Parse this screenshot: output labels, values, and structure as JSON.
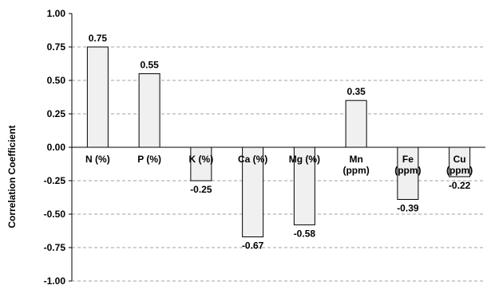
{
  "chart_data": {
    "type": "bar",
    "title": "",
    "xlabel": "",
    "ylabel": "Correlation Coefficient",
    "ylim": [
      -1.0,
      1.0
    ],
    "yticks": [
      "1.00",
      "0.75",
      "0.50",
      "0.25",
      "0.00",
      "-0.25",
      "-0.50",
      "-0.75",
      "-1.00"
    ],
    "ytick_values": [
      1.0,
      0.75,
      0.5,
      0.25,
      0.0,
      -0.25,
      -0.5,
      -0.75,
      -1.0
    ],
    "categories": [
      [
        "N (%)"
      ],
      [
        "P (%)"
      ],
      [
        "K (%)"
      ],
      [
        "Ca (%)"
      ],
      [
        "Mg (%)"
      ],
      [
        "Mn",
        "(ppm)"
      ],
      [
        "Fe",
        "(ppm)"
      ],
      [
        "Cu",
        "(ppm)"
      ]
    ],
    "values": [
      0.75,
      0.55,
      -0.25,
      -0.67,
      -0.58,
      0.35,
      -0.39,
      -0.22
    ],
    "data_labels": [
      "0.75",
      "0.55",
      "-0.25",
      "-0.67",
      "-0.58",
      "0.35",
      "-0.39",
      "-0.22"
    ],
    "grid": true,
    "legend": "none",
    "colors": {
      "bar_fill": "#f0f0f0",
      "bar_stroke": "#000000",
      "grid": "#a0a0a0",
      "axis": "#000000"
    }
  }
}
